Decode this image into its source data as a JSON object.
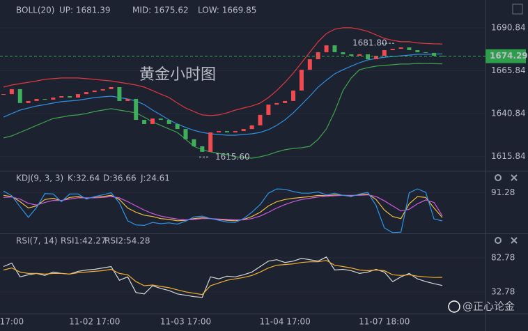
{
  "chart_data": [
    {
      "type": "candlestick",
      "title": "黄金小时图",
      "indicator": "BOLL(20)",
      "ylim": [
        1607.6,
        1707.0
      ],
      "yticks": [
        {
          "value": 1690.84,
          "label": "1690.84"
        },
        {
          "value": 1665.84,
          "label": "1665.84"
        },
        {
          "value": 1640.84,
          "label": "1640.84"
        },
        {
          "value": 1615.84,
          "label": "1615.84"
        }
      ],
      "categories": [
        null,
        "17:00",
        null,
        null,
        null,
        null,
        null,
        null,
        null,
        null,
        null,
        "11-02 17:00",
        null,
        null,
        null,
        null,
        null,
        null,
        null,
        null,
        null,
        null,
        "11-03 17:00",
        null,
        null,
        null,
        null,
        null,
        null,
        null,
        null,
        null,
        null,
        null,
        "11-04 17:00",
        null,
        null,
        null,
        null,
        null,
        null,
        null,
        null,
        null,
        null,
        null,
        "11-07 18:00",
        null,
        null,
        null,
        null,
        null,
        null,
        null
      ],
      "up_color": "#ef4a4f",
      "down_color": "#3fae5a",
      "closes": [
        1652.2,
        1655.1,
        1647.0,
        1648.2,
        1649.4,
        1649.0,
        1650.2,
        1651.0,
        1650.2,
        1652.2,
        1653.4,
        1654.3,
        1655.1,
        1656.3,
        1648.2,
        1649.4,
        1637.2,
        1634.8,
        1638.0,
        1637.2,
        1634.8,
        1631.9,
        1625.9,
        1621.8,
        1618.6,
        1629.9,
        1630.7,
        1629.9,
        1630.7,
        1631.9,
        1634.0,
        1640.1,
        1646.1,
        1647.0,
        1648.2,
        1654.3,
        1666.4,
        1672.5,
        1676.6,
        1680.6,
        1676.6,
        1675.4,
        1674.5,
        1675.4,
        1672.5,
        1674.5,
        1677.8,
        1678.6,
        1679.4,
        1677.8,
        1676.6,
        1676.2,
        1674.5,
        1674.29
      ],
      "series": [
        {
          "name": "UP: 1681.39",
          "color": "#e0393e",
          "values": [
            1656.3,
            1657.5,
            1658.3,
            1659.1,
            1659.9,
            1660.8,
            1661.2,
            1661.6,
            1661.6,
            1661.6,
            1661.2,
            1660.8,
            1660.3,
            1659.9,
            1659.1,
            1658.3,
            1657.5,
            1656.3,
            1654.3,
            1652.2,
            1650.2,
            1647.0,
            1644.1,
            1642.1,
            1640.1,
            1639.7,
            1640.1,
            1641.3,
            1642.9,
            1644.1,
            1645.3,
            1647.0,
            1650.2,
            1654.3,
            1659.1,
            1664.4,
            1670.5,
            1676.6,
            1682.7,
            1687.5,
            1690.0,
            1690.8,
            1690.8,
            1690.0,
            1688.7,
            1686.7,
            1684.7,
            1683.5,
            1682.7,
            1682.7,
            1682.0,
            1681.7,
            1681.5,
            1681.39
          ]
        },
        {
          "name": "MID: 1675.62",
          "color": "#2f8fe0",
          "values": [
            1638.8,
            1640.9,
            1642.9,
            1644.1,
            1645.3,
            1646.1,
            1647.0,
            1647.8,
            1648.2,
            1648.6,
            1649.4,
            1650.2,
            1650.6,
            1651.0,
            1650.2,
            1649.4,
            1648.2,
            1646.1,
            1642.9,
            1640.1,
            1637.2,
            1634.8,
            1632.8,
            1631.1,
            1629.9,
            1629.1,
            1628.7,
            1628.3,
            1628.3,
            1628.7,
            1629.1,
            1629.9,
            1631.5,
            1634.0,
            1637.2,
            1641.3,
            1646.1,
            1651.0,
            1656.3,
            1660.3,
            1664.0,
            1666.4,
            1668.5,
            1670.5,
            1672.1,
            1672.9,
            1673.7,
            1674.1,
            1674.5,
            1674.9,
            1675.4,
            1675.4,
            1675.5,
            1675.62
          ]
        },
        {
          "name": "LOW: 1669.85",
          "color": "#3fa34d",
          "values": [
            1626.7,
            1627.9,
            1629.9,
            1631.9,
            1634.0,
            1636.0,
            1638.0,
            1638.8,
            1639.7,
            1640.1,
            1640.9,
            1642.1,
            1642.9,
            1643.7,
            1642.9,
            1642.1,
            1641.3,
            1638.8,
            1636.0,
            1634.0,
            1631.9,
            1629.9,
            1625.9,
            1621.8,
            1619.8,
            1618.6,
            1617.7,
            1616.9,
            1615.7,
            1615.3,
            1614.9,
            1615.7,
            1616.9,
            1618.6,
            1619.8,
            1620.6,
            1621.0,
            1621.8,
            1625.9,
            1631.9,
            1642.1,
            1654.3,
            1661.6,
            1666.4,
            1667.6,
            1668.5,
            1668.9,
            1669.3,
            1669.7,
            1669.7,
            1670.1,
            1670.0,
            1669.9,
            1669.85
          ]
        }
      ],
      "last_price": {
        "value": 1674.29,
        "label": "1674.29"
      },
      "annotations": [
        {
          "value": 1681.8,
          "label": "1681.80"
        },
        {
          "value": 1615.6,
          "label": "1615.60"
        }
      ]
    },
    {
      "type": "line",
      "indicator": "KDJ(9, 3, 3)",
      "ylim": [
        -5,
        115
      ],
      "yticks": [
        91.28
      ],
      "series": [
        {
          "name": "K:32.64",
          "color": "#f0c040",
          "values": [
            85,
            82,
            70,
            55,
            60,
            75,
            78,
            72,
            80,
            82,
            78,
            80,
            82,
            85,
            75,
            55,
            45,
            38,
            35,
            30,
            28,
            25,
            26,
            30,
            32,
            30,
            28,
            26,
            25,
            28,
            35,
            45,
            60,
            70,
            75,
            78,
            80,
            82,
            85,
            84,
            86,
            85,
            84,
            86,
            88,
            75,
            50,
            35,
            30,
            65,
            82,
            80,
            55,
            32.64
          ]
        },
        {
          "name": "D:36.66",
          "color": "#cf5ae0",
          "values": [
            80,
            81,
            76,
            66,
            62,
            68,
            73,
            73,
            76,
            79,
            79,
            79,
            80,
            82,
            79,
            70,
            60,
            50,
            42,
            36,
            32,
            29,
            27,
            28,
            30,
            30,
            29,
            28,
            27,
            27,
            30,
            36,
            45,
            55,
            63,
            70,
            75,
            78,
            81,
            83,
            84,
            85,
            85,
            85,
            86,
            82,
            72,
            60,
            48,
            52,
            65,
            74,
            68,
            36.66
          ]
        },
        {
          "name": "J:24.61",
          "color": "#2f95e8",
          "values": [
            95,
            84,
            58,
            33,
            56,
            89,
            88,
            70,
            88,
            88,
            76,
            82,
            86,
            91,
            67,
            25,
            15,
            14,
            21,
            18,
            20,
            17,
            24,
            34,
            36,
            30,
            26,
            22,
            21,
            30,
            45,
            63,
            90,
            100,
            99,
            94,
            90,
            90,
            93,
            86,
            90,
            85,
            82,
            88,
            92,
            61,
            8,
            -3,
            -2,
            91,
            100,
            92,
            29,
            24.61
          ]
        }
      ]
    },
    {
      "type": "line",
      "indicator": "RSI(7, 14)",
      "ylim": [
        6.3,
        98.1
      ],
      "yticks": [
        82.78,
        32.78
      ],
      "series": [
        {
          "name": "RSI1:42.27",
          "color": "#d8d8d8",
          "values": [
            70,
            75,
            55,
            58,
            60,
            57,
            62,
            60,
            59,
            63,
            65,
            66,
            68,
            70,
            50,
            55,
            32,
            30,
            42,
            38,
            35,
            30,
            28,
            26,
            25,
            55,
            52,
            56,
            55,
            58,
            62,
            70,
            78,
            80,
            76,
            78,
            82,
            80,
            78,
            84,
            65,
            66,
            64,
            60,
            62,
            66,
            62,
            48,
            55,
            60,
            52,
            48,
            45,
            42.27
          ]
        },
        {
          "name": "RSI2:54.28",
          "color": "#f0b030",
          "values": [
            65,
            68,
            62,
            60,
            60,
            59,
            60,
            60,
            59,
            61,
            62,
            63,
            64,
            66,
            60,
            58,
            48,
            42,
            43,
            41,
            39,
            36,
            33,
            31,
            29,
            42,
            46,
            50,
            52,
            54,
            57,
            62,
            68,
            72,
            73,
            74,
            76,
            77,
            77,
            79,
            72,
            70,
            68,
            65,
            64,
            65,
            64,
            58,
            57,
            58,
            56,
            55,
            54,
            54.28
          ]
        }
      ]
    }
  ],
  "watermark": "@正心论金"
}
